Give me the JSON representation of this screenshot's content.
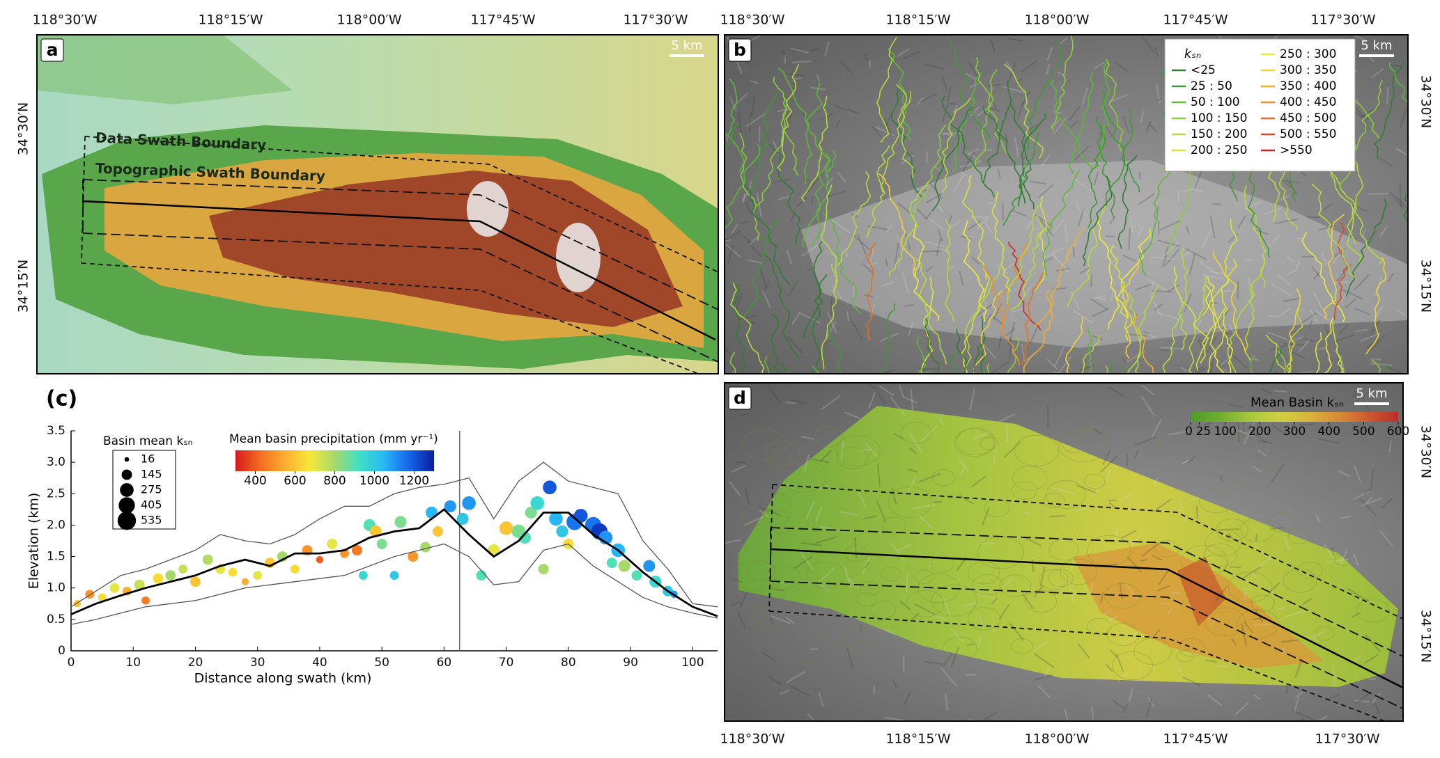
{
  "panel_a": {
    "label": "a",
    "scale_bar": "5 km",
    "annotations": [
      "Data Swath Boundary",
      "Topographic Swath Boundary"
    ],
    "lon_labels": [
      "118°30′W",
      "118°15′W",
      "118°00′W",
      "117°45′W",
      "117°30′W"
    ],
    "lat_labels": [
      "34°30′N",
      "34°15′N"
    ]
  },
  "panel_b": {
    "label": "b",
    "scale_bar": "5 km",
    "lon_labels": [
      "118°30′W",
      "118°15′W",
      "118°00′W",
      "117°45′W",
      "117°30′W"
    ],
    "lat_labels": [
      "34°30′N",
      "34°15′N"
    ],
    "legend": {
      "title": "kₛₙ",
      "entries": [
        {
          "label": "<25",
          "color": "#2e7d32"
        },
        {
          "label": "25 : 50",
          "color": "#3f9a35"
        },
        {
          "label": "50 : 100",
          "color": "#5cb83a"
        },
        {
          "label": "100 : 150",
          "color": "#8ccc3c"
        },
        {
          "label": "150 : 200",
          "color": "#b5d93e"
        },
        {
          "label": "200 : 250",
          "color": "#d7e33f"
        },
        {
          "label": "250 : 300",
          "color": "#ecec3a"
        },
        {
          "label": "300 : 350",
          "color": "#f2d23a"
        },
        {
          "label": "350 : 400",
          "color": "#f0b030"
        },
        {
          "label": "400 : 450",
          "color": "#ec9028"
        },
        {
          "label": "450 : 500",
          "color": "#e66e22"
        },
        {
          "label": "500 : 550",
          "color": "#dc4a1e"
        },
        {
          "label": ">550",
          "color": "#cc2a1c"
        }
      ]
    }
  },
  "panel_d": {
    "label": "d",
    "scale_bar": "5 km",
    "lon_labels": [
      "118°30′W",
      "118°15′W",
      "118°00′W",
      "117°45′W",
      "117°30′W"
    ],
    "lat_labels": [
      "34°30′N",
      "34°15′N"
    ],
    "colorbar": {
      "title": "Mean Basin kₛₙ",
      "ticks": [
        0,
        25,
        100,
        200,
        300,
        400,
        500,
        600
      ],
      "colors": [
        "#4e9a2c",
        "#6fae30",
        "#a8c83c",
        "#cfd040",
        "#d8b43a",
        "#d88a34",
        "#cc5a2e",
        "#b8302a"
      ]
    }
  },
  "chart_data": {
    "type": "scatter",
    "label": "(c)",
    "xlabel": "Distance along swath (km)",
    "ylabel": "Elevation (km)",
    "xlim": [
      0,
      104
    ],
    "ylim": [
      0,
      3.5
    ],
    "xticks": [
      0,
      10,
      20,
      30,
      40,
      50,
      60,
      70,
      80,
      90,
      100
    ],
    "yticks": [
      0,
      0.5,
      {
        "value": 1,
        "label": "1.0"
      },
      1.5,
      {
        "value": 2,
        "label": "2.0"
      },
      2.5,
      {
        "value": 3,
        "label": "3.0"
      },
      3.5
    ],
    "vline": 62.5,
    "profile_x": [
      0,
      4,
      8,
      12,
      16,
      20,
      24,
      28,
      32,
      36,
      40,
      44,
      48,
      52,
      56,
      60,
      64,
      68,
      72,
      76,
      80,
      84,
      88,
      92,
      96,
      100,
      104
    ],
    "profiles": [
      {
        "color": "#555555",
        "values": [
          0.7,
          0.95,
          1.2,
          1.3,
          1.45,
          1.6,
          1.85,
          1.75,
          1.7,
          1.85,
          2.1,
          2.3,
          2.3,
          2.5,
          2.6,
          2.65,
          2.75,
          2.1,
          2.7,
          3.0,
          2.7,
          2.6,
          2.5,
          1.75,
          1.3,
          0.75,
          0.7
        ]
      },
      {
        "color": "#555555",
        "values": [
          0.42,
          0.5,
          0.6,
          0.7,
          0.75,
          0.8,
          0.9,
          1.0,
          1.05,
          1.1,
          1.15,
          1.2,
          1.35,
          1.5,
          1.6,
          1.7,
          1.5,
          1.05,
          1.1,
          1.6,
          1.7,
          1.35,
          1.1,
          0.85,
          0.7,
          0.6,
          0.52
        ]
      },
      {
        "color": "#000000",
        "values": [
          0.58,
          0.75,
          0.88,
          1.0,
          1.1,
          1.2,
          1.35,
          1.45,
          1.35,
          1.55,
          1.55,
          1.6,
          1.8,
          1.9,
          1.95,
          2.25,
          1.85,
          1.5,
          1.75,
          2.2,
          2.2,
          1.85,
          1.6,
          1.25,
          0.95,
          0.7,
          0.55
        ]
      }
    ],
    "points": {
      "x": [
        1,
        3,
        5,
        7,
        9,
        11,
        12,
        14,
        16,
        18,
        20,
        22,
        24,
        26,
        28,
        30,
        32,
        34,
        36,
        38,
        40,
        42,
        44,
        46,
        47,
        48,
        49,
        50,
        52,
        53,
        55,
        57,
        58,
        59,
        61,
        63,
        64,
        66,
        68,
        70,
        72,
        73,
        74,
        75,
        76,
        77,
        78,
        79,
        80,
        81,
        82,
        84,
        85,
        86,
        87,
        88,
        89,
        91,
        93,
        94,
        96,
        97
      ],
      "y": [
        0.75,
        0.9,
        0.85,
        1.0,
        0.95,
        1.05,
        0.8,
        1.15,
        1.2,
        1.3,
        1.1,
        1.45,
        1.3,
        1.25,
        1.1,
        1.2,
        1.4,
        1.5,
        1.3,
        1.6,
        1.45,
        1.7,
        1.55,
        1.6,
        1.2,
        2.0,
        1.9,
        1.7,
        1.2,
        2.05,
        1.5,
        1.65,
        2.2,
        1.9,
        2.3,
        2.1,
        2.35,
        1.2,
        1.6,
        1.95,
        1.9,
        1.8,
        2.2,
        2.35,
        1.3,
        2.6,
        2.1,
        1.9,
        1.7,
        2.05,
        2.15,
        2.0,
        1.9,
        1.8,
        1.4,
        1.6,
        1.35,
        1.2,
        1.35,
        1.1,
        0.95,
        0.9
      ],
      "size": [
        60,
        100,
        80,
        120,
        100,
        145,
        80,
        145,
        145,
        100,
        145,
        145,
        120,
        100,
        60,
        100,
        145,
        145,
        100,
        145,
        60,
        145,
        100,
        145,
        100,
        200,
        200,
        145,
        100,
        200,
        145,
        145,
        200,
        145,
        200,
        200,
        275,
        145,
        200,
        275,
        275,
        200,
        200,
        275,
        145,
        275,
        275,
        200,
        145,
        405,
        275,
        405,
        405,
        275,
        145,
        275,
        200,
        145,
        200,
        200,
        145,
        60
      ],
      "precipitation": [
        600,
        500,
        650,
        700,
        550,
        750,
        450,
        650,
        800,
        750,
        600,
        780,
        700,
        650,
        550,
        700,
        600,
        800,
        650,
        500,
        400,
        700,
        500,
        450,
        950,
        900,
        600,
        850,
        1000,
        850,
        500,
        800,
        1050,
        600,
        1100,
        1000,
        1100,
        900,
        700,
        600,
        850,
        900,
        850,
        950,
        800,
        1200,
        1050,
        1000,
        650,
        1150,
        1200,
        1150,
        1250,
        1100,
        900,
        1050,
        800,
        900,
        1100,
        950,
        1000,
        1100
      ]
    },
    "size_legend": {
      "title": "Basin mean kₛₙ",
      "values": [
        16,
        145,
        275,
        405,
        535
      ]
    },
    "colorbar": {
      "title": "Mean basin precipitation (mm yr⁻¹)",
      "clim": [
        300,
        1300
      ],
      "ticks": [
        400,
        600,
        800,
        1000,
        1200
      ],
      "colors": [
        "#d7191c",
        "#f46d20",
        "#fdae30",
        "#f5e83a",
        "#a6d96a",
        "#3ee0c8",
        "#29b6f6",
        "#1565e8",
        "#0a1ea0"
      ]
    }
  }
}
